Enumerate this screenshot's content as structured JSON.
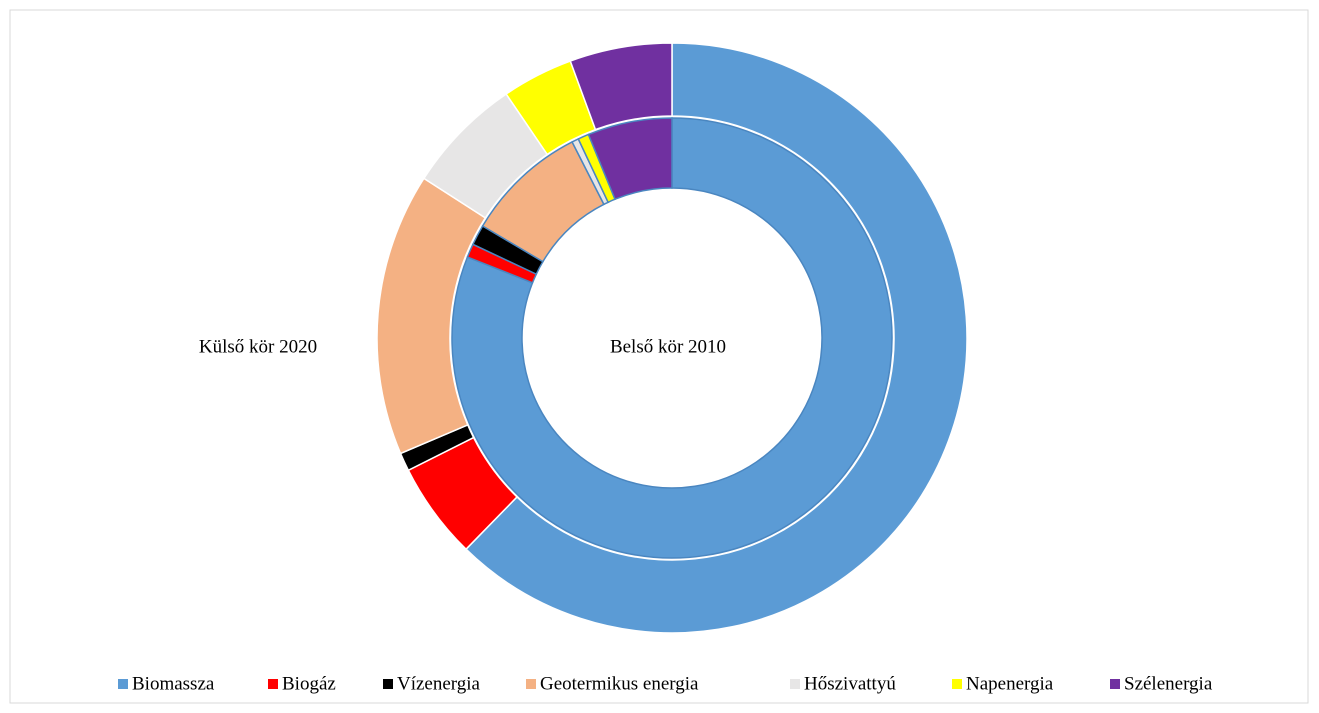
{
  "chart_data": {
    "type": "donut",
    "categories": [
      "Biomassza",
      "Biogáz",
      "Vízenergia",
      "Geotermikus energia",
      "Hőszivattyú",
      "Napenergia",
      "Szélenergia"
    ],
    "colors": [
      "#5b9bd5",
      "#ff0000",
      "#000000",
      "#f4b183",
      "#e7e6e6",
      "#ffff00",
      "#7030a0"
    ],
    "series": [
      {
        "name": "Belső kör 2010",
        "values": [
          81,
          1,
          1.5,
          9,
          0.5,
          0.8,
          6.2
        ]
      },
      {
        "name": "Külső kör 2020",
        "values": [
          62.3,
          5.3,
          1,
          15.5,
          6.4,
          3.9,
          5.6
        ]
      }
    ],
    "legend": "bottom"
  }
}
